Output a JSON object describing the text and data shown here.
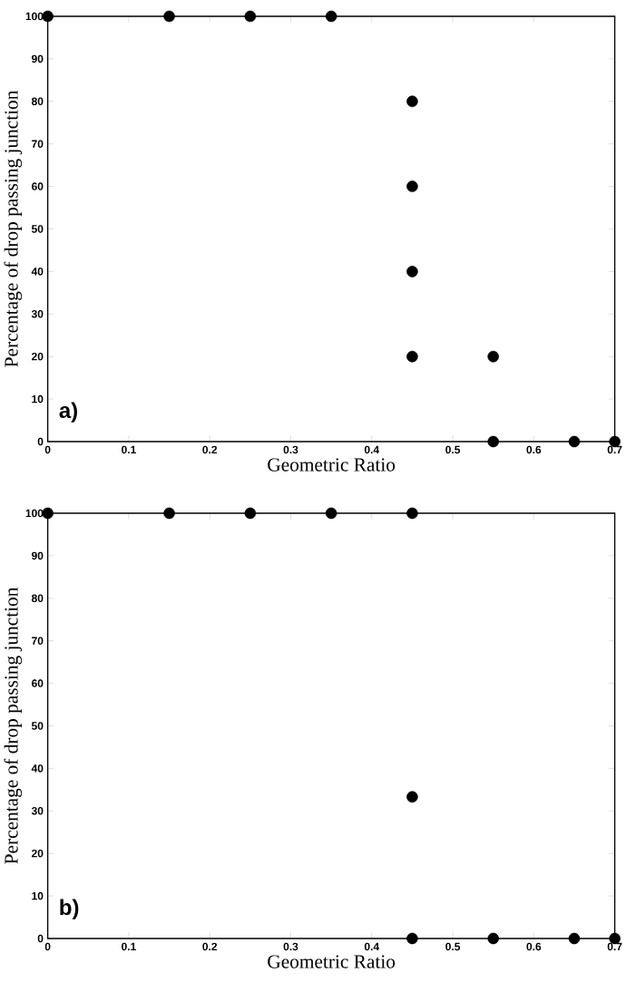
{
  "chart_data": [
    {
      "type": "scatter",
      "xlabel": "Geometric Ratio",
      "ylabel": "Percentage of drop passing junction",
      "x": [
        0,
        0.15,
        0.25,
        0.35,
        0.45,
        0.45,
        0.45,
        0.45,
        0.55,
        0.55,
        0.65,
        0.7
      ],
      "values": [
        100,
        100,
        100,
        100,
        80,
        60,
        40,
        20,
        20,
        0,
        0,
        0
      ],
      "color": "#000000",
      "xlim": [
        0,
        0.7
      ],
      "ylim": [
        0,
        100
      ],
      "xticks": [
        0,
        0.1,
        0.2,
        0.3,
        0.4,
        0.5,
        0.6,
        0.7
      ],
      "yticks": [
        0,
        10,
        20,
        30,
        40,
        50,
        60,
        70,
        80,
        90,
        100
      ],
      "annotations": [
        "a)"
      ]
    },
    {
      "type": "scatter",
      "xlabel": "Geometric Ratio",
      "ylabel": "Percentage of drop passing junction",
      "x": [
        0,
        0.15,
        0.25,
        0.35,
        0.45,
        0.45,
        0.45,
        0.55,
        0.65,
        0.7
      ],
      "values": [
        100,
        100,
        100,
        100,
        100,
        33.3,
        0,
        0,
        0,
        0
      ],
      "color": "#000000",
      "xlim": [
        0,
        0.7
      ],
      "ylim": [
        0,
        100
      ],
      "xticks": [
        0,
        0.1,
        0.2,
        0.3,
        0.4,
        0.5,
        0.6,
        0.7
      ],
      "yticks": [
        0,
        10,
        20,
        30,
        40,
        50,
        60,
        70,
        80,
        90,
        100
      ],
      "annotations": [
        "b)"
      ]
    }
  ]
}
